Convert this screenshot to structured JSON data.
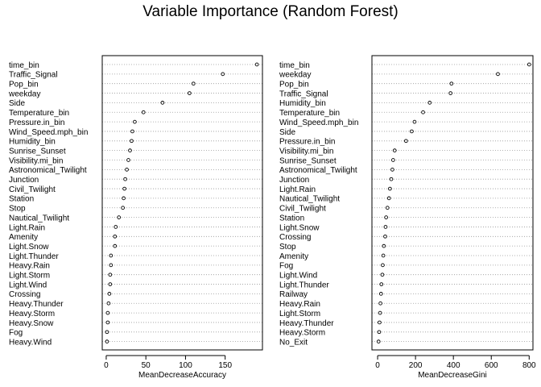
{
  "chart_data": [
    {
      "type": "scatter",
      "style": "dot-chart",
      "title": "Variable Importance (Random Forest)",
      "xlabel": "MeanDecreaseAccuracy",
      "ylabel": "",
      "xlim": [
        -5,
        197
      ],
      "xticks": [
        0,
        50,
        100,
        150
      ],
      "grid": true,
      "categories": [
        "time_bin",
        "Traffic_Signal",
        "Pop_bin",
        "weekday",
        "Side",
        "Temperature_bin",
        "Pressure.in_bin",
        "Wind_Speed.mph_bin",
        "Humidity_bin",
        "Sunrise_Sunset",
        "Visibility.mi_bin",
        "Astronomical_Twilight",
        "Junction",
        "Civil_Twilight",
        "Station",
        "Stop",
        "Nautical_Twilight",
        "Light.Rain",
        "Amenity",
        "Light.Snow",
        "Light.Thunder",
        "Heavy.Rain",
        "Light.Storm",
        "Light.Wind",
        "Crossing",
        "Heavy.Thunder",
        "Heavy.Storm",
        "Heavy.Snow",
        "Fog",
        "Heavy.Wind"
      ],
      "values": [
        190,
        147,
        110,
        105,
        71,
        47,
        36,
        33,
        32,
        30,
        28,
        26,
        24,
        23,
        22,
        21,
        16,
        12,
        11,
        11,
        6,
        6,
        5,
        5,
        4,
        3,
        2,
        2,
        1,
        1
      ]
    },
    {
      "type": "scatter",
      "style": "dot-chart",
      "xlabel": "MeanDecreaseGini",
      "ylabel": "",
      "xlim": [
        -30,
        820
      ],
      "xticks": [
        0,
        200,
        400,
        600,
        800
      ],
      "grid": true,
      "categories": [
        "time_bin",
        "weekday",
        "Pop_bin",
        "Traffic_Signal",
        "Humidity_bin",
        "Temperature_bin",
        "Wind_Speed.mph_bin",
        "Side",
        "Pressure.in_bin",
        "Visibility.mi_bin",
        "Sunrise_Sunset",
        "Astronomical_Twilight",
        "Junction",
        "Light.Rain",
        "Nautical_Twilight",
        "Civil_Twilight",
        "Station",
        "Light.Snow",
        "Crossing",
        "Stop",
        "Amenity",
        "Fog",
        "Light.Wind",
        "Light.Thunder",
        "Railway",
        "Heavy.Rain",
        "Light.Storm",
        "Heavy.Thunder",
        "Heavy.Storm",
        "No_Exit"
      ],
      "values": [
        800,
        635,
        390,
        385,
        275,
        240,
        195,
        180,
        150,
        90,
        82,
        78,
        72,
        65,
        60,
        52,
        45,
        42,
        40,
        33,
        30,
        27,
        25,
        20,
        18,
        15,
        13,
        10,
        8,
        5
      ]
    }
  ]
}
